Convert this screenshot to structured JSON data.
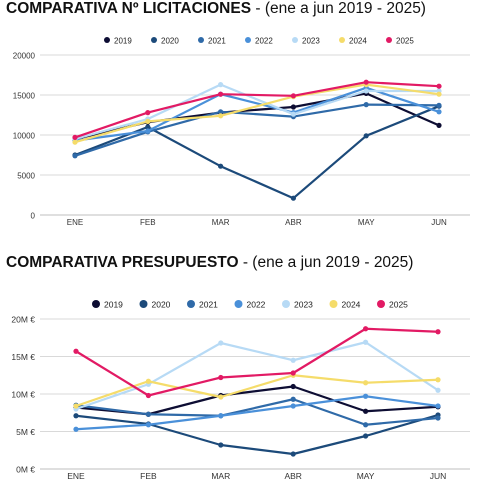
{
  "colors": {
    "2019": "#0d0d33",
    "2020": "#1c4a7a",
    "2021": "#2f6aa8",
    "2022": "#4a90d9",
    "2023": "#b7daf5",
    "2024": "#f5dc6a",
    "2025": "#e21a64"
  },
  "chart_data": [
    {
      "type": "line",
      "title": "COMPARATIVA Nº LICITACIONES",
      "subtitle": "- (ene a jun 2019 - 2025)",
      "categories": [
        "ENE",
        "FEB",
        "MAR",
        "ABR",
        "MAY",
        "JUN"
      ],
      "ylim": [
        0,
        20000
      ],
      "yticks": [
        0,
        5000,
        10000,
        15000,
        20000
      ],
      "ytick_labels": [
        "0",
        "5000",
        "10000",
        "15000",
        "20000"
      ],
      "legend_position": "top",
      "grid": true,
      "series": [
        {
          "name": "2019",
          "values": [
            9500,
            11600,
            12800,
            13500,
            15200,
            11200
          ]
        },
        {
          "name": "2020",
          "values": [
            7500,
            11000,
            6100,
            2100,
            9900,
            13600
          ]
        },
        {
          "name": "2021",
          "values": [
            7400,
            10400,
            12900,
            12300,
            13800,
            13700
          ]
        },
        {
          "name": "2022",
          "values": [
            9300,
            10500,
            15100,
            12800,
            15900,
            12900
          ]
        },
        {
          "name": "2023",
          "values": [
            9500,
            12000,
            16300,
            12600,
            15500,
            15500
          ]
        },
        {
          "name": "2024",
          "values": [
            9100,
            11700,
            12400,
            14800,
            16300,
            15100
          ]
        },
        {
          "name": "2025",
          "values": [
            9700,
            12800,
            15100,
            14900,
            16600,
            16100
          ]
        }
      ]
    },
    {
      "type": "line",
      "title": "COMPARATIVA PRESUPUESTO",
      "subtitle": "- (ene a jun 2019 - 2025)",
      "categories": [
        "ENE",
        "FEB",
        "MAR",
        "ABR",
        "MAY",
        "JUN"
      ],
      "ylim": [
        0,
        20
      ],
      "yticks": [
        0,
        5,
        10,
        15,
        20
      ],
      "ytick_labels": [
        "0M €",
        "5M €",
        "10M €",
        "15M €",
        "20M €"
      ],
      "y_unit": "M €",
      "legend_position": "top",
      "grid": true,
      "series": [
        {
          "name": "2019",
          "values": [
            8.2,
            7.3,
            9.8,
            11.0,
            7.7,
            8.3
          ]
        },
        {
          "name": "2020",
          "values": [
            7.1,
            6.0,
            3.2,
            2.0,
            4.4,
            7.2
          ]
        },
        {
          "name": "2021",
          "values": [
            8.5,
            7.3,
            7.1,
            9.3,
            5.9,
            6.8
          ]
        },
        {
          "name": "2022",
          "values": [
            5.3,
            5.9,
            7.1,
            8.4,
            9.7,
            8.4
          ]
        },
        {
          "name": "2023",
          "values": [
            8.0,
            11.3,
            16.8,
            14.5,
            16.9,
            10.5
          ]
        },
        {
          "name": "2024",
          "values": [
            8.4,
            11.7,
            9.6,
            12.5,
            11.5,
            11.9
          ]
        },
        {
          "name": "2025",
          "values": [
            15.7,
            9.8,
            12.2,
            12.8,
            18.7,
            18.3
          ]
        }
      ]
    }
  ]
}
